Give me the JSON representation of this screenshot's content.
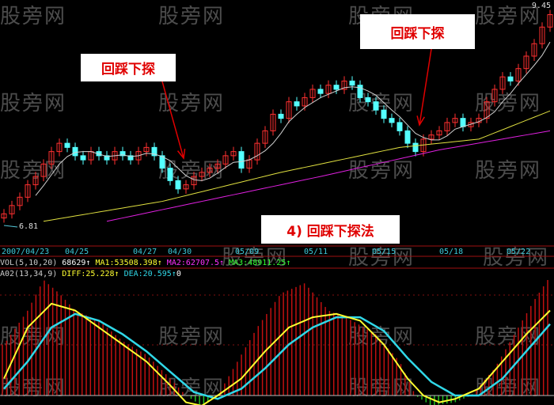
{
  "watermark": "股旁网",
  "chart_data": {
    "type": "candlestick",
    "price_high_label": "9.45",
    "price_low_label": "6.81",
    "ylim": [
      6.81,
      9.45
    ],
    "x_tick_labels": [
      "2007/04/23",
      "04/25",
      "04/27",
      "04/30",
      "05/09",
      "05/11",
      "05/15",
      "05/18",
      "05/22"
    ],
    "open": [
      6.9,
      6.95,
      7.05,
      7.15,
      7.3,
      7.4,
      7.55,
      7.7,
      7.8,
      7.75,
      7.65,
      7.6,
      7.7,
      7.65,
      7.6,
      7.7,
      7.65,
      7.6,
      7.7,
      7.75,
      7.65,
      7.5,
      7.35,
      7.25,
      7.3,
      7.4,
      7.45,
      7.5,
      7.55,
      7.65,
      7.7,
      7.5,
      7.6,
      7.8,
      7.95,
      8.15,
      8.1,
      8.3,
      8.25,
      8.35,
      8.45,
      8.4,
      8.5,
      8.45,
      8.55,
      8.5,
      8.35,
      8.3,
      8.2,
      8.1,
      8.05,
      7.95,
      7.8,
      7.7,
      7.85,
      7.9,
      7.95,
      8.05,
      8.1,
      8.0,
      8.05,
      8.1,
      8.3,
      8.45,
      8.6,
      8.55,
      8.7,
      8.85,
      9.0,
      9.2
    ],
    "close": [
      6.95,
      7.05,
      7.15,
      7.3,
      7.4,
      7.55,
      7.7,
      7.8,
      7.75,
      7.65,
      7.6,
      7.7,
      7.65,
      7.6,
      7.7,
      7.65,
      7.6,
      7.7,
      7.75,
      7.65,
      7.5,
      7.35,
      7.25,
      7.3,
      7.4,
      7.45,
      7.5,
      7.55,
      7.65,
      7.7,
      7.5,
      7.6,
      7.8,
      7.95,
      8.15,
      8.1,
      8.3,
      8.25,
      8.35,
      8.45,
      8.4,
      8.5,
      8.45,
      8.55,
      8.5,
      8.35,
      8.3,
      8.2,
      8.1,
      8.05,
      7.95,
      7.8,
      7.7,
      7.85,
      7.9,
      7.95,
      8.05,
      8.1,
      8.0,
      8.05,
      8.1,
      8.3,
      8.45,
      8.6,
      8.55,
      8.7,
      8.85,
      9.0,
      9.2,
      9.35
    ],
    "ma_yellow": [
      [
        5,
        6.86
      ],
      [
        20,
        7.1
      ],
      [
        35,
        7.45
      ],
      [
        50,
        7.75
      ],
      [
        60,
        7.85
      ],
      [
        69,
        8.19
      ]
    ],
    "ma_magenta": [
      [
        13,
        6.86
      ],
      [
        25,
        7.1
      ],
      [
        40,
        7.4
      ],
      [
        55,
        7.72
      ],
      [
        69,
        7.95
      ]
    ],
    "colors": {
      "up": "#ff3030",
      "down": "#54ffff",
      "ma_white": "#d0d0d0",
      "ma_yellow": "#e0e040",
      "ma_magenta": "#e020e0",
      "diff": "#ffff30",
      "dea": "#30d8e8",
      "hist_up": "#c01010",
      "hist_down": "#20c020"
    },
    "macd": {
      "diff": [
        [
          0,
          5
        ],
        [
          3,
          20
        ],
        [
          6,
          27
        ],
        [
          9,
          25
        ],
        [
          12,
          20
        ],
        [
          15,
          15
        ],
        [
          18,
          10
        ],
        [
          21,
          3
        ],
        [
          23,
          -2
        ],
        [
          25,
          -3
        ],
        [
          27,
          0
        ],
        [
          30,
          5
        ],
        [
          33,
          13
        ],
        [
          36,
          20
        ],
        [
          39,
          23
        ],
        [
          42,
          24
        ],
        [
          45,
          22
        ],
        [
          48,
          15
        ],
        [
          51,
          5
        ],
        [
          53,
          0
        ],
        [
          55,
          -2
        ],
        [
          57,
          -1
        ],
        [
          60,
          2
        ],
        [
          63,
          10
        ],
        [
          66,
          18
        ],
        [
          69,
          25
        ]
      ],
      "dea": [
        [
          0,
          2
        ],
        [
          3,
          10
        ],
        [
          6,
          20
        ],
        [
          9,
          24
        ],
        [
          12,
          22
        ],
        [
          15,
          18
        ],
        [
          18,
          13
        ],
        [
          21,
          7
        ],
        [
          24,
          1
        ],
        [
          27,
          -1
        ],
        [
          30,
          2
        ],
        [
          33,
          8
        ],
        [
          36,
          15
        ],
        [
          39,
          20
        ],
        [
          42,
          23
        ],
        [
          45,
          23
        ],
        [
          48,
          19
        ],
        [
          51,
          11
        ],
        [
          54,
          4
        ],
        [
          57,
          0
        ],
        [
          60,
          0
        ],
        [
          63,
          5
        ],
        [
          66,
          13
        ],
        [
          69,
          21
        ]
      ],
      "bars": [
        [
          0,
          15
        ],
        [
          3,
          25
        ],
        [
          5,
          34
        ],
        [
          7,
          30
        ],
        [
          9,
          25
        ],
        [
          12,
          22
        ],
        [
          15,
          16
        ],
        [
          18,
          12
        ],
        [
          21,
          5
        ],
        [
          23,
          0
        ],
        [
          25,
          -3
        ],
        [
          27,
          0
        ],
        [
          29,
          8
        ],
        [
          32,
          20
        ],
        [
          35,
          30
        ],
        [
          38,
          33
        ],
        [
          41,
          25
        ],
        [
          44,
          22
        ],
        [
          47,
          18
        ],
        [
          50,
          10
        ],
        [
          52,
          0
        ],
        [
          54,
          -3
        ],
        [
          57,
          -2
        ],
        [
          59,
          0
        ],
        [
          62,
          8
        ],
        [
          65,
          20
        ],
        [
          67,
          28
        ],
        [
          69,
          35
        ]
      ]
    }
  },
  "indicators": {
    "vol_label": "VOL(5,10,20)",
    "vol_value": "68629",
    "ma1": "MA1:53508.398",
    "ma2": "MA2:62707.5",
    "ma3": "MA3:48911.25",
    "macd_label": "A02(13,34,9)",
    "diff": "DIFF:25.228",
    "dea": "DEA:20.595",
    "macd": "0",
    "arrow": "↑"
  },
  "annotations": {
    "callout1": "回踩下探",
    "callout2": "回踩下探",
    "title": "4) 回踩下探法"
  }
}
